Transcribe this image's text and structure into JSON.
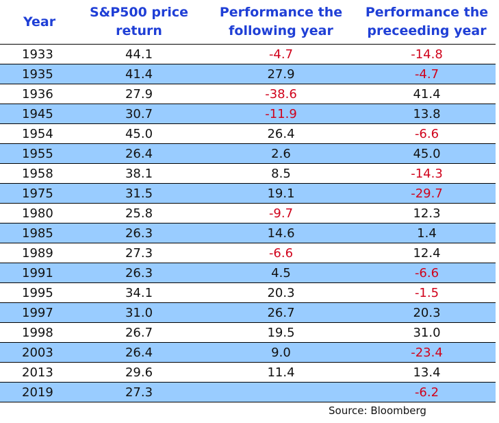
{
  "chart_data": {
    "type": "table",
    "columns": [
      "Year",
      "S&P500 price return",
      "Performance the following year",
      "Performance the preceeding year"
    ],
    "rows": [
      [
        "1933",
        "44.1",
        "-4.7",
        "-14.8"
      ],
      [
        "1935",
        "41.4",
        "27.9",
        "-4.7"
      ],
      [
        "1936",
        "27.9",
        "-38.6",
        "41.4"
      ],
      [
        "1945",
        "30.7",
        "-11.9",
        "13.8"
      ],
      [
        "1954",
        "45.0",
        "26.4",
        "-6.6"
      ],
      [
        "1955",
        "26.4",
        "2.6",
        "45.0"
      ],
      [
        "1958",
        "38.1",
        "8.5",
        "-14.3"
      ],
      [
        "1975",
        "31.5",
        "19.1",
        "-29.7"
      ],
      [
        "1980",
        "25.8",
        "-9.7",
        "12.3"
      ],
      [
        "1985",
        "26.3",
        "14.6",
        "1.4"
      ],
      [
        "1989",
        "27.3",
        "-6.6",
        "12.4"
      ],
      [
        "1991",
        "26.3",
        "4.5",
        "-6.6"
      ],
      [
        "1995",
        "34.1",
        "20.3",
        "-1.5"
      ],
      [
        "1997",
        "31.0",
        "26.7",
        "20.3"
      ],
      [
        "1998",
        "26.7",
        "19.5",
        "31.0"
      ],
      [
        "2003",
        "26.4",
        "9.0",
        "-23.4"
      ],
      [
        "2013",
        "29.6",
        "11.4",
        "13.4"
      ],
      [
        "2019",
        "27.3",
        "",
        "-6.2"
      ]
    ],
    "source": "Source: Bloomberg"
  },
  "colors": {
    "header_text": "#1f3fd6",
    "negative_text": "#d0021b",
    "alternate_row_fill": "#99ccff"
  }
}
